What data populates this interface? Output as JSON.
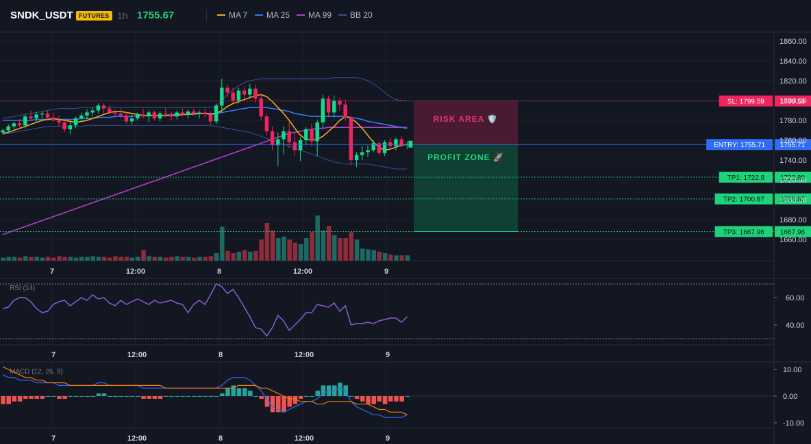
{
  "header": {
    "symbol": "SNDK_USDT",
    "badge": "FUTURES",
    "timeframe": "1h",
    "last_price": "1755.67",
    "indicators": [
      {
        "label": "MA 7",
        "color": "#f5a623"
      },
      {
        "label": "MA 25",
        "color": "#2f7bf5"
      },
      {
        "label": "MA 99",
        "color": "#b23fc9"
      },
      {
        "label": "BB 20",
        "color": "#3b4f9a"
      }
    ]
  },
  "levels": {
    "sl": {
      "label": "SL: 1799.59",
      "axis": "1799.59",
      "value": 1799.59,
      "color": "#f0245e"
    },
    "entry": {
      "label": "ENTRY: 1755.71",
      "axis": "1755.71",
      "value": 1755.71,
      "color": "#2f6df6"
    },
    "tp1": {
      "label": "TP1: 1722.8",
      "axis": "1722.80",
      "value": 1722.8,
      "color": "#1ed37a"
    },
    "tp2": {
      "label": "TP2: 1700.87",
      "axis": "1700.87",
      "value": 1700.87,
      "color": "#1ed37a"
    },
    "tp3": {
      "label": "TP3: 1667.96",
      "axis": "1667.96",
      "value": 1667.96,
      "color": "#1ed37a"
    }
  },
  "zones": {
    "risk_label": "RISK AREA 🛡️",
    "profit_label": "PROFIT ZONE 🚀"
  },
  "colors": {
    "up": "#26a69a",
    "up_bright": "#16d98a",
    "down": "#f0245e",
    "vol_up": "#1d6a63",
    "vol_down": "#8e2c3c",
    "rsi": "#8a5fd6",
    "macd": "#2f6df6",
    "signal": "#f57c0c"
  },
  "chart_data": [
    {
      "type": "candlestick",
      "title": "SNDK_USDT 1h",
      "x_ticks": [
        "7",
        "12:00",
        "8",
        "12:00",
        "9"
      ],
      "ylim": [
        1655,
        1865
      ],
      "y_ticks": [
        "1860.00",
        "1840.00",
        "1820.00",
        "1800.00",
        "1780.00",
        "1760.00",
        "1740.00",
        "1720.00",
        "1700.00",
        "1680.00",
        "1660.00"
      ],
      "candles_ohlc": [
        [
          1768,
          1771,
          1766,
          1770
        ],
        [
          1770,
          1776,
          1768,
          1774
        ],
        [
          1774,
          1779,
          1771,
          1777
        ],
        [
          1777,
          1781,
          1773,
          1775
        ],
        [
          1775,
          1786,
          1772,
          1784
        ],
        [
          1784,
          1790,
          1780,
          1782
        ],
        [
          1782,
          1788,
          1778,
          1786
        ],
        [
          1786,
          1789,
          1782,
          1787
        ],
        [
          1787,
          1790,
          1781,
          1783
        ],
        [
          1783,
          1788,
          1779,
          1780
        ],
        [
          1780,
          1785,
          1774,
          1778
        ],
        [
          1778,
          1782,
          1768,
          1771
        ],
        [
          1771,
          1779,
          1766,
          1775
        ],
        [
          1775,
          1784,
          1772,
          1782
        ],
        [
          1782,
          1788,
          1779,
          1785
        ],
        [
          1785,
          1791,
          1781,
          1788
        ],
        [
          1788,
          1793,
          1784,
          1790
        ],
        [
          1790,
          1797,
          1787,
          1795
        ],
        [
          1795,
          1797,
          1787,
          1792
        ],
        [
          1792,
          1795,
          1786,
          1788
        ],
        [
          1788,
          1791,
          1783,
          1787
        ],
        [
          1787,
          1792,
          1782,
          1785
        ],
        [
          1785,
          1789,
          1777,
          1779
        ],
        [
          1779,
          1786,
          1776,
          1782
        ],
        [
          1782,
          1788,
          1780,
          1786
        ],
        [
          1786,
          1792,
          1782,
          1784
        ],
        [
          1784,
          1790,
          1778,
          1788
        ],
        [
          1788,
          1790,
          1780,
          1782
        ],
        [
          1782,
          1789,
          1779,
          1787
        ],
        [
          1787,
          1793,
          1783,
          1786
        ],
        [
          1786,
          1789,
          1780,
          1784
        ],
        [
          1784,
          1790,
          1781,
          1788
        ],
        [
          1788,
          1792,
          1784,
          1786
        ],
        [
          1786,
          1791,
          1782,
          1789
        ],
        [
          1789,
          1792,
          1785,
          1787
        ],
        [
          1787,
          1790,
          1782,
          1788
        ],
        [
          1788,
          1792,
          1783,
          1786
        ],
        [
          1786,
          1789,
          1776,
          1779
        ],
        [
          1779,
          1797,
          1776,
          1795
        ],
        [
          1795,
          1822,
          1788,
          1813
        ],
        [
          1813,
          1816,
          1803,
          1808
        ],
        [
          1808,
          1813,
          1797,
          1800
        ],
        [
          1800,
          1813,
          1797,
          1810
        ],
        [
          1810,
          1814,
          1801,
          1806
        ],
        [
          1806,
          1817,
          1803,
          1812
        ],
        [
          1812,
          1816,
          1798,
          1802
        ],
        [
          1802,
          1806,
          1780,
          1784
        ],
        [
          1784,
          1787,
          1765,
          1769
        ],
        [
          1769,
          1774,
          1750,
          1755
        ],
        [
          1755,
          1768,
          1734,
          1761
        ],
        [
          1761,
          1774,
          1746,
          1769
        ],
        [
          1769,
          1779,
          1752,
          1758
        ],
        [
          1758,
          1767,
          1744,
          1750
        ],
        [
          1750,
          1763,
          1739,
          1760
        ],
        [
          1760,
          1773,
          1755,
          1771
        ],
        [
          1771,
          1777,
          1754,
          1759
        ],
        [
          1759,
          1781,
          1744,
          1778
        ],
        [
          1778,
          1806,
          1772,
          1802
        ],
        [
          1802,
          1805,
          1784,
          1788
        ],
        [
          1788,
          1805,
          1783,
          1800
        ],
        [
          1800,
          1803,
          1790,
          1796
        ],
        [
          1796,
          1801,
          1780,
          1783
        ],
        [
          1783,
          1785,
          1735,
          1740
        ],
        [
          1740,
          1748,
          1733,
          1745
        ],
        [
          1745,
          1754,
          1740,
          1748
        ],
        [
          1748,
          1755,
          1743,
          1750
        ],
        [
          1750,
          1760,
          1748,
          1757
        ],
        [
          1757,
          1759,
          1745,
          1747
        ],
        [
          1747,
          1760,
          1744,
          1758
        ],
        [
          1758,
          1762,
          1751,
          1754
        ],
        [
          1754,
          1763,
          1750,
          1761
        ],
        [
          1761,
          1764,
          1753,
          1755
        ],
        [
          1755,
          1759,
          1751,
          1756
        ]
      ],
      "ma7": [
        1767,
        1768,
        1770,
        1772,
        1774,
        1776,
        1778,
        1780,
        1781,
        1782,
        1781,
        1780,
        1779,
        1778,
        1779,
        1780,
        1782,
        1784,
        1786,
        1788,
        1789,
        1789,
        1788,
        1787,
        1786,
        1785,
        1785,
        1785,
        1785,
        1785,
        1785,
        1785,
        1786,
        1786,
        1787,
        1787,
        1787,
        1786,
        1787,
        1790,
        1794,
        1797,
        1799,
        1801,
        1803,
        1805,
        1806,
        1804,
        1799,
        1793,
        1787,
        1780,
        1772,
        1765,
        1761,
        1760,
        1761,
        1764,
        1769,
        1774,
        1780,
        1784,
        1782,
        1778,
        1772,
        1765,
        1758,
        1753,
        1750,
        1751,
        1753,
        1755,
        1756
      ],
      "ma25": [
        1780,
        1780,
        1780,
        1780,
        1780,
        1780,
        1781,
        1781,
        1781,
        1781,
        1781,
        1781,
        1781,
        1781,
        1782,
        1782,
        1782,
        1783,
        1783,
        1783,
        1784,
        1784,
        1784,
        1784,
        1785,
        1785,
        1785,
        1785,
        1785,
        1785,
        1786,
        1786,
        1786,
        1786,
        1786,
        1787,
        1787,
        1787,
        1787,
        1788,
        1789,
        1790,
        1791,
        1792,
        1793,
        1793,
        1793,
        1793,
        1792,
        1791,
        1790,
        1789,
        1787,
        1786,
        1785,
        1784,
        1784,
        1784,
        1784,
        1784,
        1784,
        1784,
        1783,
        1782,
        1781,
        1779,
        1778,
        1777,
        1776,
        1775,
        1774,
        1773,
        1772
      ],
      "ma99": [
        1665,
        1667,
        1669,
        1671,
        1673,
        1675,
        1677,
        1679,
        1681,
        1683,
        1685,
        1687,
        1689,
        1691,
        1693,
        1695,
        1697,
        1699,
        1701,
        1703,
        1705,
        1707,
        1709,
        1711,
        1713,
        1715,
        1717,
        1719,
        1721,
        1723,
        1725,
        1727,
        1729,
        1731,
        1733,
        1735,
        1737,
        1739,
        1741,
        1743,
        1745,
        1747,
        1749,
        1751,
        1753,
        1755,
        1757,
        1759,
        1761,
        1763,
        1765,
        1767,
        1768,
        1769,
        1770,
        1771,
        1772,
        1772,
        1773,
        1773,
        1773,
        1773,
        1773,
        1773,
        1773,
        1773,
        1773,
        1773,
        1773,
        1773,
        1773,
        1773,
        1773
      ],
      "bb_upper": [
        1782,
        1783,
        1784,
        1785,
        1786,
        1787,
        1788,
        1789,
        1790,
        1791,
        1792,
        1792,
        1792,
        1792,
        1793,
        1793,
        1793,
        1793,
        1793,
        1793,
        1793,
        1793,
        1793,
        1793,
        1793,
        1793,
        1793,
        1793,
        1793,
        1793,
        1793,
        1793,
        1793,
        1793,
        1793,
        1793,
        1793,
        1793,
        1794,
        1800,
        1806,
        1811,
        1815,
        1818,
        1820,
        1821,
        1822,
        1822,
        1822,
        1822,
        1822,
        1822,
        1822,
        1822,
        1822,
        1822,
        1822,
        1822,
        1822,
        1823,
        1823,
        1823,
        1823,
        1823,
        1822,
        1820,
        1817,
        1813,
        1808,
        1804,
        1801,
        1800,
        1800
      ],
      "bb_lower": [
        1766,
        1767,
        1768,
        1769,
        1770,
        1771,
        1772,
        1773,
        1774,
        1774,
        1774,
        1774,
        1774,
        1774,
        1774,
        1775,
        1775,
        1775,
        1775,
        1775,
        1775,
        1775,
        1775,
        1775,
        1775,
        1775,
        1775,
        1775,
        1775,
        1775,
        1775,
        1775,
        1775,
        1775,
        1775,
        1775,
        1775,
        1775,
        1774,
        1773,
        1772,
        1771,
        1770,
        1769,
        1768,
        1766,
        1764,
        1762,
        1760,
        1758,
        1756,
        1754,
        1752,
        1750,
        1748,
        1746,
        1744,
        1742,
        1740,
        1738,
        1737,
        1736,
        1736,
        1736,
        1736,
        1736,
        1735,
        1734,
        1733,
        1732,
        1731,
        1731,
        1731
      ],
      "volume": [
        4,
        5,
        5,
        4,
        6,
        5,
        5,
        4,
        5,
        4,
        6,
        5,
        5,
        4,
        5,
        5,
        6,
        5,
        5,
        4,
        6,
        5,
        5,
        4,
        5,
        14,
        6,
        5,
        5,
        4,
        5,
        6,
        5,
        5,
        4,
        5,
        5,
        6,
        10,
        45,
        13,
        10,
        12,
        14,
        12,
        13,
        28,
        50,
        40,
        30,
        32,
        28,
        24,
        22,
        30,
        38,
        60,
        40,
        46,
        34,
        30,
        30,
        38,
        28,
        16,
        15,
        14,
        12,
        10,
        8,
        7,
        7,
        7
      ]
    },
    {
      "type": "line",
      "title": "RSI (14)",
      "ylim": [
        28,
        75
      ],
      "y_ticks": [
        "60.00",
        "40.00"
      ],
      "series": [
        {
          "name": "RSI (14)",
          "values": [
            52,
            53,
            58,
            60,
            60,
            57,
            52,
            49,
            50,
            55,
            57,
            58,
            54,
            57,
            60,
            58,
            62,
            59,
            60,
            56,
            54,
            58,
            55,
            57,
            59,
            57,
            55,
            58,
            56,
            57,
            58,
            56,
            55,
            49,
            55,
            58,
            55,
            62,
            70,
            68,
            63,
            66,
            60,
            53,
            46,
            38,
            37,
            32,
            38,
            47,
            43,
            36,
            40,
            44,
            49,
            49,
            55,
            54,
            53,
            56,
            50,
            54,
            40,
            41,
            41,
            42,
            41,
            43,
            44,
            45,
            45,
            42,
            46
          ]
        }
      ]
    },
    {
      "type": "bar",
      "title": "MACD (12, 26, 9)",
      "ylim": [
        -12,
        12
      ],
      "y_ticks": [
        "10.00",
        "0.00",
        "-10.00"
      ],
      "series": [
        {
          "name": "MACD",
          "values": [
            8,
            7,
            7,
            6,
            6,
            6,
            5,
            5,
            5,
            5,
            4,
            4,
            4,
            4,
            4,
            4,
            4,
            5,
            5,
            4,
            4,
            4,
            4,
            4,
            4,
            3,
            3,
            3,
            3,
            3,
            3,
            3,
            3,
            3,
            3,
            3,
            3,
            3,
            3,
            4,
            6,
            7,
            7,
            7,
            6,
            4,
            2,
            -1,
            -4,
            -5,
            -6,
            -5,
            -4,
            -3,
            -2,
            -2,
            -1,
            1,
            2,
            2,
            3,
            2,
            -2,
            -4,
            -5,
            -6,
            -7,
            -7,
            -8,
            -8,
            -8,
            -8,
            -7
          ]
        },
        {
          "name": "Signal",
          "values": [
            11,
            10,
            9,
            8,
            7,
            7,
            6,
            6,
            5,
            5,
            5,
            5,
            4,
            4,
            4,
            4,
            4,
            4,
            4,
            4,
            4,
            4,
            4,
            4,
            4,
            4,
            4,
            4,
            4,
            3,
            3,
            3,
            3,
            3,
            3,
            3,
            3,
            3,
            3,
            3,
            3,
            3,
            4,
            4,
            4,
            4,
            3,
            3,
            2,
            1,
            0,
            -1,
            -1,
            -2,
            -2,
            -2,
            -3,
            -3,
            -2,
            -2,
            -2,
            -2,
            -2,
            -3,
            -3,
            -3,
            -4,
            -5,
            -5,
            -6,
            -6,
            -6,
            -7
          ]
        },
        {
          "name": "Histogram",
          "values": [
            -3,
            -3,
            -2,
            -2,
            -1,
            -1,
            -1,
            -1,
            0,
            0,
            -1,
            -1,
            0,
            0,
            0,
            0,
            0,
            1,
            1,
            0,
            0,
            0,
            0,
            0,
            0,
            -1,
            -1,
            -1,
            -1,
            0,
            0,
            0,
            0,
            0,
            0,
            0,
            0,
            0,
            0,
            1,
            3,
            4,
            3,
            3,
            2,
            0,
            -1,
            -4,
            -6,
            -6,
            -6,
            -4,
            -3,
            -1,
            0,
            0,
            2,
            4,
            4,
            4,
            5,
            4,
            0,
            -1,
            -2,
            -3,
            -3,
            -2,
            -3,
            -2,
            -2,
            -2,
            0
          ]
        }
      ]
    }
  ]
}
